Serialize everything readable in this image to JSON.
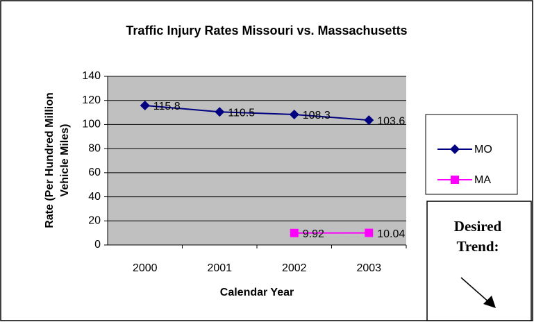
{
  "chart_data": {
    "type": "line",
    "title": "Traffic Injury Rates Missouri vs. Massachusetts",
    "x_label": "Calendar Year",
    "y_label": [
      "Rate (Per Hundred Million",
      "Vehicle Miles)"
    ],
    "categories": [
      "2000",
      "2001",
      "2002",
      "2003"
    ],
    "series": [
      {
        "name": "MO",
        "color": "#000080",
        "marker": "diamond",
        "values": [
          115.8,
          110.5,
          108.3,
          103.6
        ]
      },
      {
        "name": "MA",
        "color": "#ff00ff",
        "marker": "square",
        "values": [
          null,
          null,
          9.92,
          10.04
        ]
      }
    ],
    "ylim": [
      0,
      140
    ],
    "yticks": [
      0,
      20,
      40,
      60,
      80,
      100,
      120,
      140
    ],
    "grid": true,
    "legend": "right",
    "annotation": "Desired Trend:"
  }
}
